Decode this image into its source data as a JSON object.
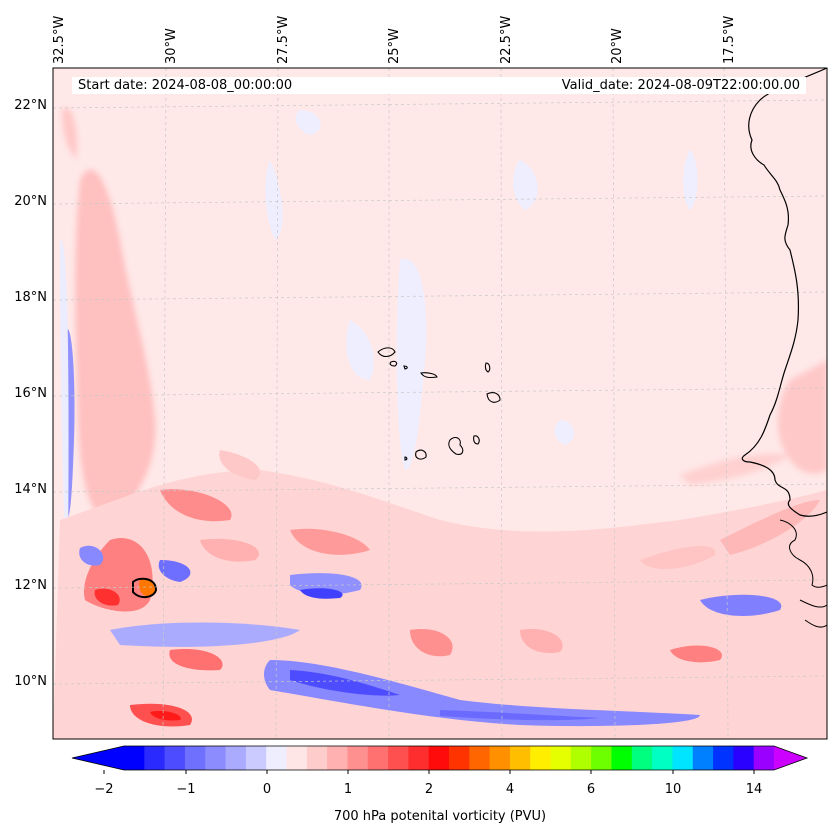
{
  "header": {
    "start_date": "Start date: 2024-08-08_00:00:00",
    "valid_date": "Valid_date: 2024-08-09T22:00:00.00"
  },
  "lon_labels": [
    "32.5°W",
    "30°W",
    "27.5°W",
    "25°W",
    "22.5°W",
    "20°W",
    "17.5°W"
  ],
  "lat_labels": [
    "22°N",
    "20°N",
    "18°N",
    "16°N",
    "14°N",
    "12°N",
    "10°N"
  ],
  "colorbar": {
    "title": "700 hPa potenital vorticity (PVU)",
    "tick_labels": [
      "−2",
      "−1",
      "0",
      "1",
      "2",
      "4",
      "6",
      "10",
      "14"
    ],
    "colors": [
      "#0000ff",
      "#2a2aff",
      "#4d4dff",
      "#7070ff",
      "#8c8cff",
      "#aaaaff",
      "#cbcbff",
      "#eeeeff",
      "#ffe6e6",
      "#ffcccc",
      "#ffb0b0",
      "#ff9090",
      "#ff7070",
      "#ff5050",
      "#ff2e2e",
      "#ff0b0b",
      "#ff3300",
      "#ff6600",
      "#ff9100",
      "#ffbf00",
      "#ffee00",
      "#e5ff00",
      "#b0ff00",
      "#6dff00",
      "#00ff00",
      "#00ff7f",
      "#00ffc3",
      "#00e5ff",
      "#0080ff",
      "#0033ff",
      "#2a00ff",
      "#9900ff"
    ],
    "extend_min_color": "#0000ff",
    "extend_max_color": "#cc00ff"
  },
  "colors": {
    "background_pv": "#ffe8e8",
    "coastline": "#000000",
    "gridline": "#c8c8c8"
  }
}
